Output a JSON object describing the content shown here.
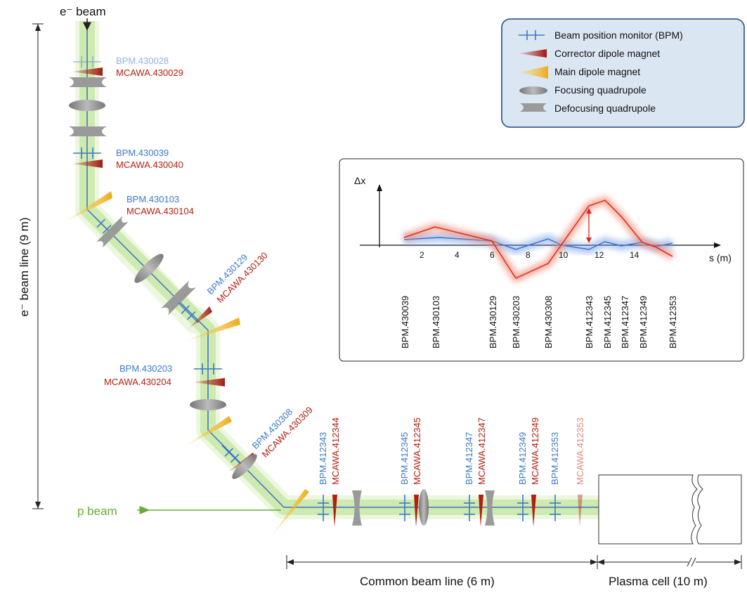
{
  "beams": {
    "electron": "e⁻ beam",
    "proton": "p beam",
    "e_beam_line": "e⁻ beam line (9 m)"
  },
  "legend": {
    "bpm": "Beam position monitor (BPM)",
    "corrector": "Corrector dipole magnet",
    "main_dipole": "Main dipole magnet",
    "focusing": "Focusing quadrupole",
    "defocusing": "Defocusing quadrupole"
  },
  "elements": {
    "bpm_430028": "BPM.430028",
    "mcawa_430029": "MCAWA.430029",
    "bpm_430039": "BPM.430039",
    "mcawa_430040": "MCAWA.430040",
    "bpm_430103": "BPM.430103",
    "mcawa_430104": "MCAWA.430104",
    "bpm_430129": "BPM.430129",
    "mcawa_430130": "MCAWA.430130",
    "bpm_430203": "BPM.430203",
    "mcawa_430204": "MCAWA.430204",
    "bpm_430308": "BPM.430308",
    "mcawa_430309": "MCAWA.430309",
    "bpm_412343": "BPM.412343",
    "mcawa_412344": "MCAWA.412344",
    "bpm_412345": "BPM.412345",
    "mcawa_412345": "MCAWA.412345",
    "bpm_412347": "BPM.412347",
    "mcawa_412347": "MCAWA.412347",
    "bpm_412349": "BPM.412349",
    "mcawa_412349": "MCAWA.412349",
    "bpm_412353": "BPM.412353",
    "mcawa_412353": "MCAWA.412353"
  },
  "dimensions": {
    "common": "Common beam line (6 m)",
    "plasma": "Plasma cell (10 m)"
  },
  "inset": {
    "ylabel": "Δx",
    "xlabel": "s (m)",
    "ticks": [
      "2",
      "4",
      "6",
      "8",
      "10",
      "12",
      "14"
    ],
    "bpm_labels": [
      "BPM.430039",
      "BPM.430103",
      "BPM.430129",
      "BPM.430203",
      "BPM.430308",
      "BPM.412343",
      "BPM.412345",
      "BPM.412347",
      "BPM.412349",
      "BPM.412353"
    ]
  },
  "colors": {
    "bpm": "#3a7ac8",
    "corrector": "#b21e0f",
    "quad": "#9a9a9a",
    "dipole": "#f0b429",
    "beam_glow": "#b6e08a",
    "legend_bg": "#dbe6f3",
    "legend_border": "#3d5f8e"
  }
}
